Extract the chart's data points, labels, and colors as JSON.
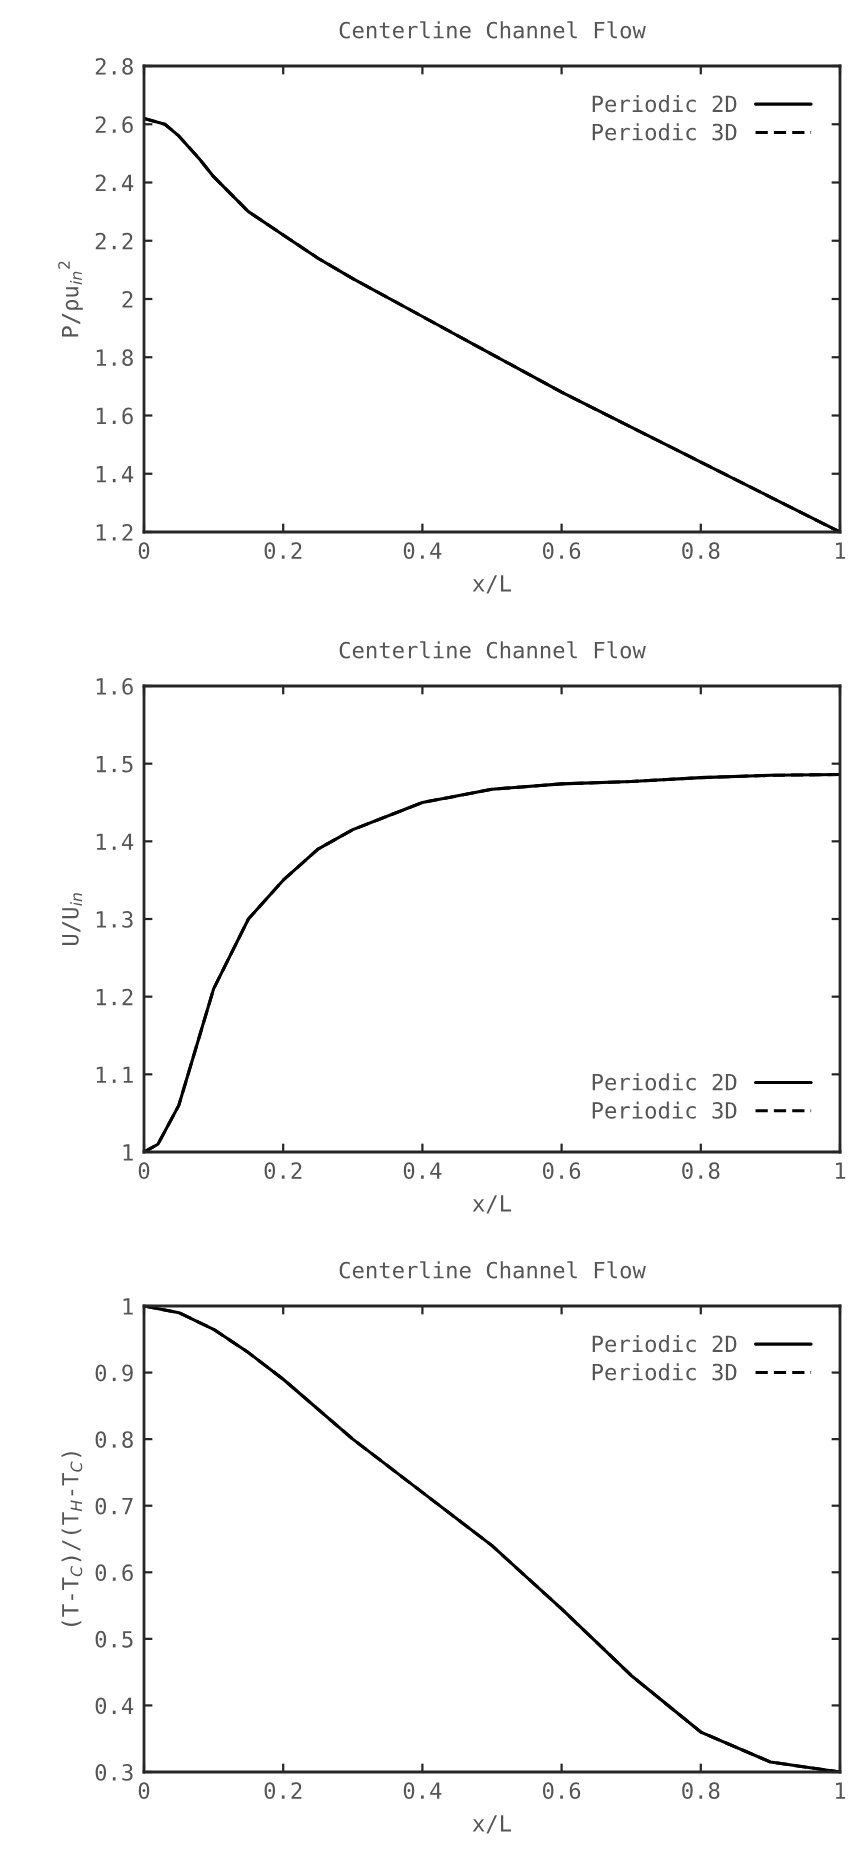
{
  "chart_data": [
    {
      "type": "line",
      "title": "Centerline Channel Flow",
      "xlabel": "x/L",
      "ylabel": "P/ρu$_{in}$$^{2}$",
      "legend": "top right",
      "grid": false,
      "xlim": [
        0,
        1
      ],
      "xticks": [
        0,
        0.2,
        0.4,
        0.6,
        0.8,
        1
      ],
      "ylim": [
        1.2,
        2.8
      ],
      "yticks": [
        1.2,
        1.4,
        1.6,
        1.8,
        2,
        2.2,
        2.4,
        2.6,
        2.8
      ],
      "x": [
        0,
        0.03,
        0.05,
        0.08,
        0.1,
        0.15,
        0.2,
        0.25,
        0.3,
        0.4,
        0.5,
        0.6,
        0.7,
        0.8,
        0.9,
        1.0
      ],
      "series": [
        {
          "name": "Periodic 2D",
          "color": "#000000",
          "line_style": "solid",
          "values": [
            2.62,
            2.6,
            2.56,
            2.48,
            2.42,
            2.3,
            2.22,
            2.14,
            2.07,
            1.94,
            1.81,
            1.68,
            1.56,
            1.44,
            1.32,
            1.2
          ]
        },
        {
          "name": "Periodic 3D",
          "color": "#000000",
          "line_style": "dashed",
          "values": [
            2.62,
            2.6,
            2.56,
            2.48,
            2.42,
            2.3,
            2.22,
            2.14,
            2.07,
            1.94,
            1.81,
            1.68,
            1.56,
            1.44,
            1.32,
            1.2
          ]
        }
      ]
    },
    {
      "type": "line",
      "title": "Centerline Channel Flow",
      "xlabel": "x/L",
      "ylabel": "U/U$_{in}$",
      "legend": "bottom right",
      "grid": false,
      "xlim": [
        0,
        1
      ],
      "xticks": [
        0,
        0.2,
        0.4,
        0.6,
        0.8,
        1
      ],
      "ylim": [
        1,
        1.6
      ],
      "yticks": [
        1,
        1.1,
        1.2,
        1.3,
        1.4,
        1.5,
        1.6
      ],
      "x": [
        0,
        0.02,
        0.05,
        0.08,
        0.1,
        0.15,
        0.2,
        0.25,
        0.3,
        0.4,
        0.5,
        0.6,
        0.7,
        0.8,
        0.9,
        1.0
      ],
      "series": [
        {
          "name": "Periodic 2D",
          "color": "#000000",
          "line_style": "solid",
          "values": [
            1.0,
            1.01,
            1.06,
            1.15,
            1.21,
            1.3,
            1.35,
            1.39,
            1.415,
            1.45,
            1.467,
            1.474,
            1.477,
            1.482,
            1.485,
            1.486
          ]
        },
        {
          "name": "Periodic 3D",
          "color": "#000000",
          "line_style": "dashed",
          "values": [
            1.0,
            1.01,
            1.06,
            1.15,
            1.21,
            1.3,
            1.35,
            1.39,
            1.415,
            1.45,
            1.467,
            1.474,
            1.477,
            1.482,
            1.485,
            1.486
          ]
        }
      ]
    },
    {
      "type": "line",
      "title": "Centerline Channel Flow",
      "xlabel": "x/L",
      "ylabel": "(T-T$_{C}$)/(T$_{H}$-T$_{C}$)",
      "legend": "top right",
      "grid": false,
      "xlim": [
        0,
        1
      ],
      "xticks": [
        0,
        0.2,
        0.4,
        0.6,
        0.8,
        1
      ],
      "ylim": [
        0.3,
        1
      ],
      "yticks": [
        0.3,
        0.4,
        0.5,
        0.6,
        0.7,
        0.8,
        0.9,
        1
      ],
      "x": [
        0,
        0.05,
        0.1,
        0.15,
        0.2,
        0.3,
        0.4,
        0.5,
        0.6,
        0.7,
        0.8,
        0.9,
        1.0
      ],
      "series": [
        {
          "name": "Periodic 2D",
          "color": "#000000",
          "line_style": "solid",
          "values": [
            1.0,
            0.99,
            0.965,
            0.93,
            0.89,
            0.8,
            0.72,
            0.64,
            0.545,
            0.445,
            0.36,
            0.315,
            0.3
          ]
        },
        {
          "name": "Periodic 3D",
          "color": "#000000",
          "line_style": "dashed",
          "values": [
            1.0,
            0.99,
            0.965,
            0.93,
            0.89,
            0.8,
            0.72,
            0.64,
            0.545,
            0.445,
            0.36,
            0.315,
            0.3
          ]
        }
      ]
    }
  ]
}
